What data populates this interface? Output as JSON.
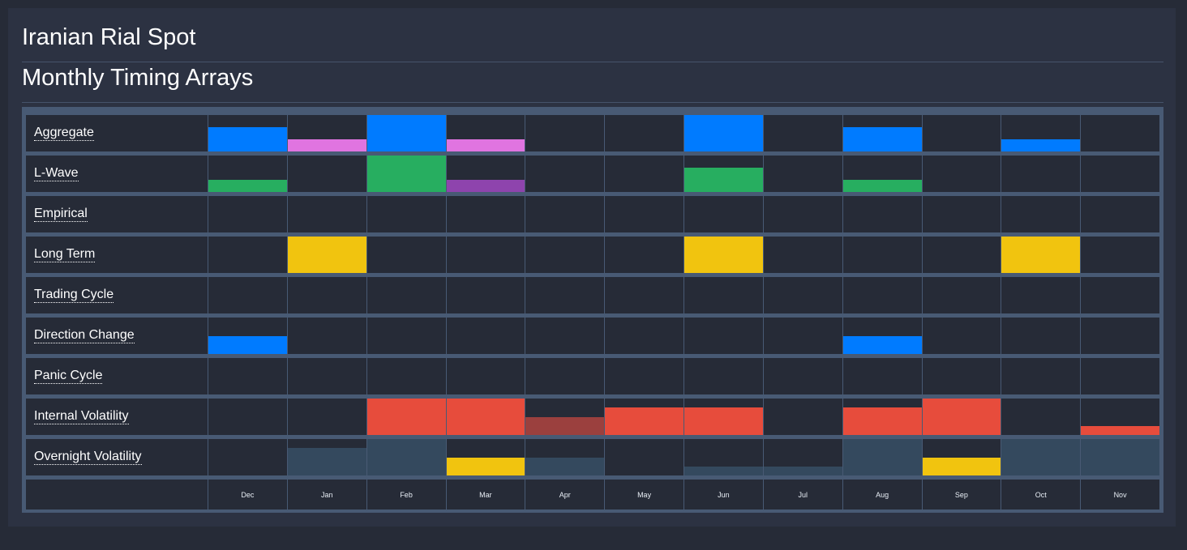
{
  "header": {
    "title": "Iranian Rial Spot",
    "subtitle": "Monthly Timing Arrays"
  },
  "colors": {
    "blue": "#007bff",
    "pink": "#e074e0",
    "green": "#27ae60",
    "purple": "#8e44ad",
    "yellow": "#f1c40f",
    "red": "#e74c3c",
    "darkred": "#9b403e",
    "slate": "#34495e"
  },
  "months": [
    "Dec",
    "Jan",
    "Feb",
    "Mar",
    "Apr",
    "May",
    "Jun",
    "Jul",
    "Aug",
    "Sep",
    "Oct",
    "Nov"
  ],
  "rows": [
    {
      "label": "Aggregate",
      "values": [
        [
          0.67,
          "blue"
        ],
        [
          0.33,
          "pink"
        ],
        [
          1,
          "blue"
        ],
        [
          0.33,
          "pink"
        ],
        null,
        null,
        [
          1,
          "blue"
        ],
        null,
        [
          0.67,
          "blue"
        ],
        null,
        [
          0.33,
          "blue"
        ],
        null
      ]
    },
    {
      "label": "L-Wave",
      "values": [
        [
          0.33,
          "green"
        ],
        null,
        [
          1,
          "green"
        ],
        [
          0.33,
          "purple"
        ],
        null,
        null,
        [
          0.67,
          "green"
        ],
        null,
        [
          0.33,
          "green"
        ],
        null,
        null,
        null
      ]
    },
    {
      "label": "Empirical",
      "values": [
        null,
        null,
        null,
        null,
        null,
        null,
        null,
        null,
        null,
        null,
        null,
        null
      ]
    },
    {
      "label": "Long Term",
      "values": [
        null,
        [
          1,
          "yellow"
        ],
        null,
        null,
        null,
        null,
        [
          1,
          "yellow"
        ],
        null,
        null,
        null,
        [
          1,
          "yellow"
        ],
        null
      ]
    },
    {
      "label": "Trading Cycle",
      "values": [
        null,
        null,
        null,
        null,
        null,
        null,
        null,
        null,
        null,
        null,
        null,
        null
      ]
    },
    {
      "label": "Direction Change",
      "values": [
        [
          0.5,
          "blue"
        ],
        null,
        null,
        null,
        null,
        null,
        null,
        null,
        [
          0.5,
          "blue"
        ],
        null,
        null,
        null
      ]
    },
    {
      "label": "Panic Cycle",
      "values": [
        null,
        null,
        null,
        null,
        null,
        null,
        null,
        null,
        null,
        null,
        null,
        null
      ]
    },
    {
      "label": "Internal Volatility",
      "values": [
        null,
        null,
        [
          1,
          "red"
        ],
        [
          1,
          "red"
        ],
        [
          0.5,
          "darkred"
        ],
        [
          0.75,
          "red"
        ],
        [
          0.75,
          "red"
        ],
        null,
        [
          0.75,
          "red"
        ],
        [
          1,
          "red"
        ],
        null,
        [
          0.25,
          "red"
        ]
      ]
    },
    {
      "label": "Overnight Volatility",
      "values": [
        null,
        [
          0.75,
          "slate"
        ],
        [
          1,
          "slate"
        ],
        [
          0.5,
          "yellow"
        ],
        [
          0.5,
          "slate"
        ],
        null,
        [
          0.25,
          "slate"
        ],
        [
          0.25,
          "slate"
        ],
        [
          1,
          "slate"
        ],
        [
          0.5,
          "yellow"
        ],
        [
          1,
          "slate"
        ],
        [
          1,
          "slate"
        ]
      ]
    }
  ]
}
